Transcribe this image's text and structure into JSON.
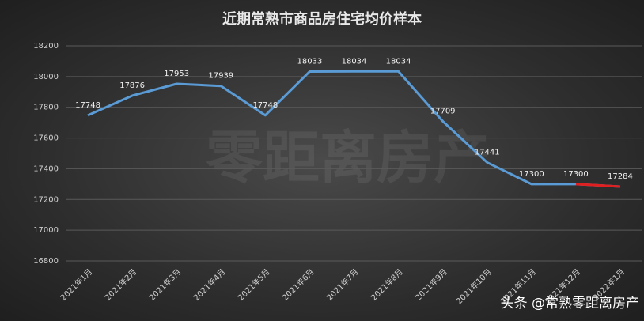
{
  "chart_data": {
    "type": "line",
    "title": "近期常熟市商品房住宅均价样本",
    "background_watermark": "零距离房产",
    "watermark": "头条 @常熟零距离房产",
    "categories": [
      "2021年1月",
      "2021年2月",
      "2021年3月",
      "2021年4月",
      "2021年5月",
      "2021年6月",
      "2021年7月",
      "2021年8月",
      "2021年9月",
      "2021年10月",
      "2021年11月",
      "2021年12月",
      "2022年1月"
    ],
    "series": [
      {
        "color": "#5b9bd5",
        "last_segment_color": "#e02020",
        "values": [
          17748,
          17876,
          17953,
          17939,
          17748,
          18033,
          18034,
          18034,
          17709,
          17441,
          17300,
          17300,
          17284
        ]
      }
    ],
    "ylim": [
      16800,
      18200
    ],
    "yticks": [
      16800,
      17000,
      17200,
      17400,
      17600,
      17800,
      18000,
      18200
    ],
    "grid": true,
    "data_labels": true
  }
}
